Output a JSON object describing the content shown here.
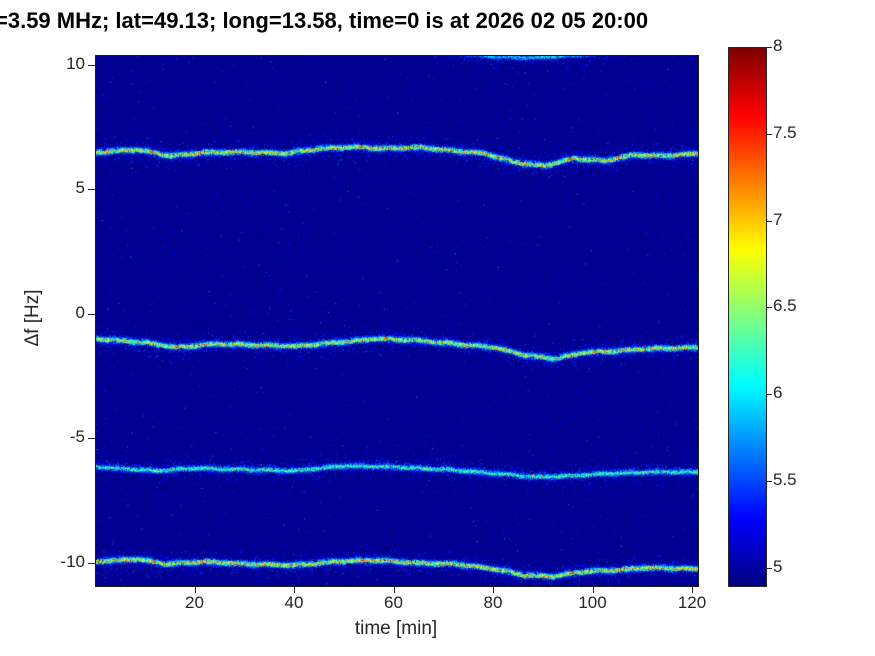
{
  "chart_data": {
    "type": "heatmap",
    "title": "=3.59 MHz;  lat=49.13; long=13.58, time=0 is at 2026 02 05 20:00",
    "xlabel": "time [min]",
    "ylabel": "Δf [Hz]",
    "xlim": [
      0,
      121
    ],
    "ylim": [
      -10.9,
      10.4
    ],
    "x_ticks": [
      20,
      40,
      60,
      80,
      100,
      120
    ],
    "y_ticks": [
      10,
      5,
      0,
      -5,
      -10
    ],
    "colormap": "jet",
    "grid": false,
    "legend": false,
    "colorbar": {
      "min": 4.9,
      "max": 8,
      "ticks": [
        5,
        5.5,
        6,
        6.5,
        7,
        7.5,
        8
      ],
      "position": "right"
    },
    "background_value": 4.95,
    "traces": [
      {
        "name": "doppler-trace-upper-faint",
        "strength": 0.35,
        "points": [
          [
            66,
            10.75
          ],
          [
            72,
            10.55
          ],
          [
            80,
            10.4
          ],
          [
            88,
            10.35
          ],
          [
            96,
            10.45
          ],
          [
            102,
            10.55
          ],
          [
            108,
            10.7
          ]
        ]
      },
      {
        "name": "doppler-trace-plus6.5Hz",
        "strength": 0.9,
        "points": [
          [
            0,
            6.55
          ],
          [
            8,
            6.65
          ],
          [
            15,
            6.4
          ],
          [
            22,
            6.55
          ],
          [
            30,
            6.55
          ],
          [
            38,
            6.5
          ],
          [
            45,
            6.7
          ],
          [
            52,
            6.75
          ],
          [
            58,
            6.7
          ],
          [
            65,
            6.75
          ],
          [
            72,
            6.6
          ],
          [
            78,
            6.5
          ],
          [
            84,
            6.15
          ],
          [
            90,
            6.0
          ],
          [
            96,
            6.3
          ],
          [
            102,
            6.2
          ],
          [
            108,
            6.45
          ],
          [
            114,
            6.4
          ],
          [
            121,
            6.5
          ]
        ]
      },
      {
        "name": "doppler-trace-minus1Hz",
        "strength": 0.85,
        "points": [
          [
            0,
            -0.95
          ],
          [
            10,
            -1.1
          ],
          [
            16,
            -1.3
          ],
          [
            24,
            -1.15
          ],
          [
            32,
            -1.2
          ],
          [
            40,
            -1.25
          ],
          [
            48,
            -1.1
          ],
          [
            56,
            -0.95
          ],
          [
            64,
            -1.0
          ],
          [
            72,
            -1.15
          ],
          [
            80,
            -1.3
          ],
          [
            86,
            -1.6
          ],
          [
            92,
            -1.75
          ],
          [
            98,
            -1.5
          ],
          [
            104,
            -1.45
          ],
          [
            110,
            -1.35
          ],
          [
            121,
            -1.3
          ]
        ]
      },
      {
        "name": "doppler-trace-minus6Hz",
        "strength": 0.55,
        "points": [
          [
            0,
            -6.1
          ],
          [
            12,
            -6.25
          ],
          [
            20,
            -6.15
          ],
          [
            30,
            -6.2
          ],
          [
            40,
            -6.25
          ],
          [
            50,
            -6.05
          ],
          [
            60,
            -6.1
          ],
          [
            70,
            -6.2
          ],
          [
            80,
            -6.35
          ],
          [
            88,
            -6.5
          ],
          [
            96,
            -6.45
          ],
          [
            104,
            -6.35
          ],
          [
            112,
            -6.3
          ],
          [
            121,
            -6.3
          ]
        ]
      },
      {
        "name": "doppler-trace-minus10Hz",
        "strength": 0.9,
        "points": [
          [
            0,
            -9.9
          ],
          [
            8,
            -9.8
          ],
          [
            14,
            -10.0
          ],
          [
            22,
            -9.9
          ],
          [
            30,
            -10.0
          ],
          [
            40,
            -10.05
          ],
          [
            48,
            -9.9
          ],
          [
            56,
            -9.85
          ],
          [
            64,
            -9.95
          ],
          [
            72,
            -10.0
          ],
          [
            80,
            -10.2
          ],
          [
            86,
            -10.45
          ],
          [
            92,
            -10.5
          ],
          [
            98,
            -10.3
          ],
          [
            104,
            -10.25
          ],
          [
            110,
            -10.15
          ],
          [
            121,
            -10.2
          ]
        ]
      }
    ]
  }
}
